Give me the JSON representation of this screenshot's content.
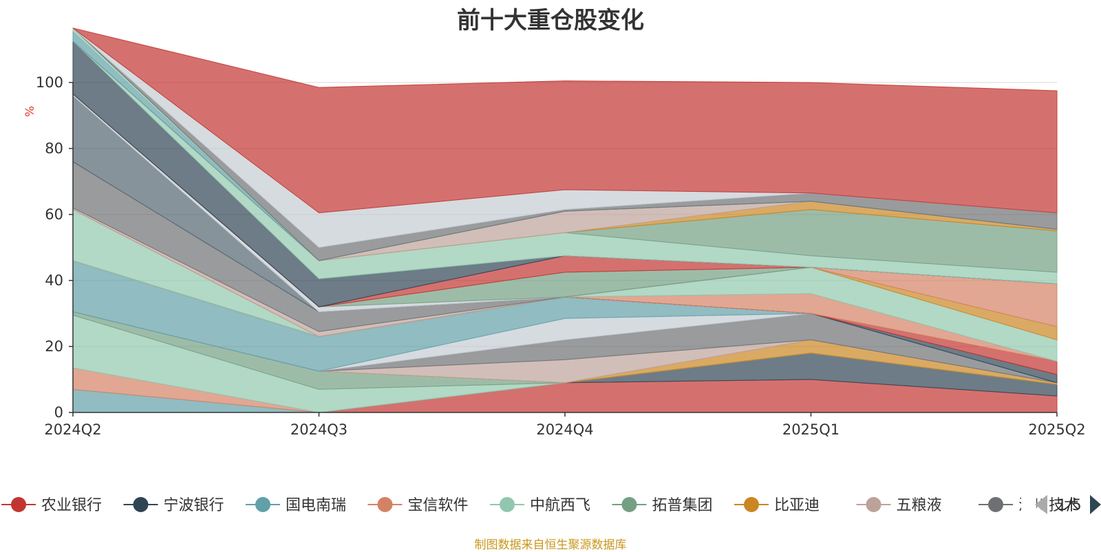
{
  "footer": {
    "source": "制图数据来自恒生聚源数据库"
  },
  "chart_data": {
    "type": "area",
    "stacked": true,
    "title": "前十大重仓股变化",
    "unit": "%",
    "x": [
      "2024Q2",
      "2024Q3",
      "2024Q4",
      "2025Q1",
      "2025Q2"
    ],
    "ylim": [
      0,
      100
    ],
    "yticks": [
      0,
      20,
      40,
      60,
      80,
      100
    ],
    "grid": true,
    "legend": {
      "position": "bottom",
      "page_indicator": "1/5",
      "items": [
        {
          "name": "农业银行",
          "color": "#c23531"
        },
        {
          "name": "宁波银行",
          "color": "#2f4554"
        },
        {
          "name": "国电南瑞",
          "color": "#61a0a8"
        },
        {
          "name": "宝信软件",
          "color": "#d48265"
        },
        {
          "name": "中航西飞",
          "color": "#91c7ae"
        },
        {
          "name": "拓普集团",
          "color": "#749f83"
        },
        {
          "name": "比亚迪",
          "color": "#ca8622"
        },
        {
          "name": "五粮液",
          "color": "#bda29a"
        },
        {
          "name": "汇川技术",
          "color": "#6e7074"
        }
      ]
    },
    "layers": [
      {
        "color": "#c23531",
        "values": [
          0,
          0,
          9,
          10,
          5
        ]
      },
      {
        "color": "#2f4554",
        "values": [
          0,
          0,
          0,
          8,
          3.5
        ]
      },
      {
        "color": "#61a0a8",
        "values": [
          7,
          0,
          0,
          0,
          0
        ]
      },
      {
        "color": "#d48265",
        "values": [
          6.5,
          0,
          0,
          0,
          0
        ]
      },
      {
        "color": "#91c7ae",
        "values": [
          16,
          7,
          0,
          0,
          0
        ]
      },
      {
        "color": "#749f83",
        "values": [
          1,
          5.5,
          0,
          0,
          0
        ]
      },
      {
        "color": "#ca8622",
        "values": [
          0,
          0,
          0,
          4,
          0.5
        ]
      },
      {
        "color": "#bda29a",
        "values": [
          0,
          0,
          7,
          0,
          0
        ]
      },
      {
        "color": "#6e7074",
        "values": [
          0,
          0,
          6,
          8,
          0
        ]
      },
      {
        "color": "#546570",
        "values": [
          0,
          0,
          0,
          0,
          0
        ]
      },
      {
        "color": "#c4ccd3",
        "values": [
          0,
          0,
          6.5,
          0,
          0
        ]
      },
      {
        "color": "#61a0a8",
        "values": [
          15.5,
          10.5,
          6.5,
          0,
          0
        ]
      },
      {
        "color": "#2f4554",
        "values": [
          0,
          0,
          0,
          0,
          2.5
        ]
      },
      {
        "color": "#c23531",
        "values": [
          0,
          0,
          0,
          0,
          4
        ]
      },
      {
        "color": "#d48265",
        "values": [
          0,
          0,
          0,
          6,
          0
        ]
      },
      {
        "color": "#91c7ae",
        "values": [
          15.5,
          0,
          0,
          8,
          6.5
        ]
      },
      {
        "color": "#ca8622",
        "values": [
          0,
          0,
          0,
          0,
          4
        ]
      },
      {
        "color": "#d48265",
        "values": [
          0,
          0,
          0,
          0,
          13
        ]
      },
      {
        "color": "#bda29a",
        "values": [
          0.5,
          1.5,
          0,
          0,
          0
        ]
      },
      {
        "color": "#6e7074",
        "values": [
          14,
          6,
          0,
          0,
          0
        ]
      },
      {
        "color": "#546570",
        "values": [
          20,
          0,
          0,
          0,
          0
        ]
      },
      {
        "color": "#c4ccd3",
        "values": [
          0.5,
          1.5,
          0,
          0,
          0
        ]
      },
      {
        "color": "#749f83",
        "values": [
          0,
          0,
          7.5,
          0,
          0
        ]
      },
      {
        "color": "#c23531",
        "values": [
          0,
          0,
          5,
          0,
          0
        ]
      },
      {
        "color": "#2f4554",
        "values": [
          16,
          8.5,
          0,
          0,
          0
        ]
      },
      {
        "color": "#91c7ae",
        "values": [
          0,
          5.5,
          7,
          3.5,
          3.5
        ]
      },
      {
        "color": "#749f83",
        "values": [
          0,
          0,
          0,
          14,
          12.5
        ]
      },
      {
        "color": "#ca8622",
        "values": [
          0,
          0,
          0,
          2.5,
          0.5
        ]
      },
      {
        "color": "#bda29a",
        "values": [
          0,
          0,
          6.5,
          0,
          0
        ]
      },
      {
        "color": "#61a0a8",
        "values": [
          3,
          0,
          0,
          0,
          0
        ]
      },
      {
        "color": "#91c7ae",
        "values": [
          1,
          0,
          0,
          0,
          0
        ]
      },
      {
        "color": "#6e7074",
        "values": [
          0,
          4,
          0.5,
          2.5,
          5
        ]
      },
      {
        "color": "#c4ccd3",
        "values": [
          0,
          10.5,
          6,
          0,
          0
        ]
      },
      {
        "color": "#c23531",
        "values": [
          0,
          38,
          33,
          33.5,
          37
        ]
      }
    ]
  }
}
